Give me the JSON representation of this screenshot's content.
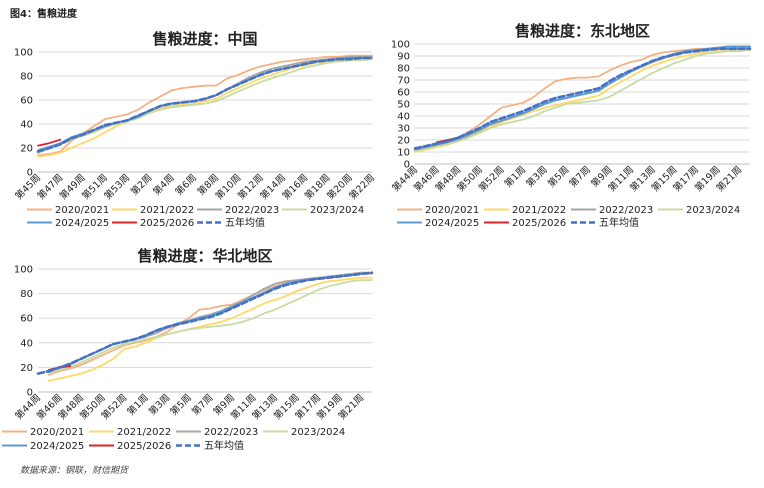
{
  "figure_caption": "图4：售粮进度",
  "source_note": "数据来源：钢联，财信期货",
  "chart_data": [
    {
      "type": "line",
      "title": "售粮进度：中国",
      "ylim": [
        0,
        100
      ],
      "yticks": [
        0,
        20,
        40,
        60,
        80,
        100
      ],
      "categories": [
        "第45周",
        "第46周",
        "第47周",
        "第48周",
        "第49周",
        "第50周",
        "第51周",
        "第52周",
        "第53周",
        "第1周",
        "第2周",
        "第3周",
        "第4周",
        "第5周",
        "第6周",
        "第7周",
        "第8周",
        "第9周",
        "第10周",
        "第11周",
        "第12周",
        "第13周",
        "第14周",
        "第15周",
        "第16周",
        "第17周",
        "第18周",
        "第19周",
        "第20周",
        "第21周",
        "第22周"
      ],
      "tick_labels": [
        "第45周",
        "第47周",
        "第49周",
        "第51周",
        "第53周",
        "第2周",
        "第4周",
        "第6周",
        "第8周",
        "第10周",
        "第12周",
        "第14周",
        "第16周",
        "第18周",
        "第20周",
        "第22周"
      ],
      "tick_indices": [
        0,
        2,
        4,
        6,
        8,
        10,
        12,
        14,
        16,
        18,
        20,
        22,
        24,
        26,
        28,
        30
      ],
      "series": [
        {
          "name": "2020/2021",
          "color": "#f4b183",
          "values": [
            14,
            15,
            17,
            26,
            32,
            38,
            44,
            46,
            48,
            52,
            58,
            63,
            68,
            70,
            71,
            72,
            72,
            78,
            81,
            85,
            88,
            90,
            92,
            93,
            94,
            95,
            96,
            96,
            97,
            97,
            97
          ]
        },
        {
          "name": "2021/2022",
          "color": "#ffd966",
          "values": [
            13,
            14,
            16,
            20,
            24,
            28,
            33,
            38,
            42,
            45,
            50,
            53,
            55,
            56,
            57,
            59,
            61,
            66,
            70,
            74,
            78,
            81,
            84,
            87,
            89,
            91,
            92,
            93,
            93,
            94,
            94
          ]
        },
        {
          "name": "2022/2023",
          "color": "#a5a5a5",
          "values": [
            17,
            20,
            24,
            28,
            31,
            34,
            38,
            41,
            43,
            47,
            51,
            55,
            57,
            58,
            59,
            61,
            64,
            69,
            74,
            79,
            83,
            86,
            88,
            90,
            92,
            93,
            94,
            95,
            96,
            96,
            96
          ]
        },
        {
          "name": "2023/2024",
          "color": "#c9dba3",
          "values": [
            16,
            19,
            23,
            27,
            30,
            33,
            37,
            40,
            42,
            45,
            49,
            52,
            54,
            55,
            56,
            57,
            59,
            63,
            67,
            71,
            75,
            78,
            81,
            84,
            87,
            89,
            91,
            92,
            93,
            93,
            94
          ]
        },
        {
          "name": "2024/2025",
          "color": "#5b9bd5",
          "values": [
            18,
            21,
            24,
            29,
            32,
            35,
            38,
            41,
            43,
            46,
            51,
            55,
            57,
            58,
            59,
            61,
            64,
            69,
            73,
            77,
            81,
            84,
            86,
            88,
            90,
            92,
            93,
            94,
            95,
            95,
            95
          ]
        },
        {
          "name": "2025/2026",
          "color": "#d62728",
          "values": [
            22,
            24,
            27,
            null,
            null,
            null,
            null,
            null,
            null,
            null,
            null,
            null,
            null,
            null,
            null,
            null,
            null,
            null,
            null,
            null,
            null,
            null,
            null,
            null,
            null,
            null,
            null,
            null,
            null,
            null,
            null
          ]
        },
        {
          "name": "五年均值",
          "color": "#4472c4",
          "dashed": true,
          "values": [
            17,
            20,
            23,
            28,
            31,
            35,
            39,
            41,
            43,
            47,
            51,
            55,
            57,
            58,
            59,
            61,
            64,
            69,
            73,
            77,
            81,
            84,
            86,
            88,
            90,
            92,
            93,
            94,
            94,
            95,
            95
          ]
        }
      ]
    },
    {
      "type": "line",
      "title": "售粮进度：东北地区",
      "ylim": [
        0,
        100
      ],
      "yticks": [
        0,
        10,
        20,
        30,
        40,
        50,
        60,
        70,
        80,
        90,
        100
      ],
      "categories": [
        "第44周",
        "第45周",
        "第46周",
        "第47周",
        "第48周",
        "第49周",
        "第50周",
        "第51周",
        "第52周",
        "第53周",
        "第1周",
        "第2周",
        "第3周",
        "第4周",
        "第5周",
        "第6周",
        "第7周",
        "第8周",
        "第9周",
        "第10周",
        "第11周",
        "第12周",
        "第13周",
        "第14周",
        "第15周",
        "第16周",
        "第17周",
        "第18周",
        "第19周",
        "第20周",
        "第21周",
        "第22周"
      ],
      "tick_labels": [
        "第44周",
        "第46周",
        "第48周",
        "第50周",
        "第52周",
        "第1周",
        "第3周",
        "第5周",
        "第7周",
        "第9周",
        "第11周",
        "第13周",
        "第15周",
        "第17周",
        "第19周",
        "第21周"
      ],
      "tick_indices": [
        0,
        2,
        4,
        6,
        8,
        10,
        12,
        14,
        16,
        18,
        20,
        22,
        24,
        26,
        28,
        30
      ],
      "series": [
        {
          "name": "2020/2021",
          "color": "#f4b183",
          "values": [
            13,
            15,
            17,
            19,
            22,
            27,
            33,
            40,
            47,
            49,
            51,
            56,
            63,
            69,
            71,
            72,
            72,
            73,
            78,
            82,
            85,
            87,
            91,
            93,
            94,
            95,
            96,
            96,
            97,
            97,
            97,
            97
          ]
        },
        {
          "name": "2021/2022",
          "color": "#ffd966",
          "values": [
            10,
            12,
            14,
            16,
            19,
            23,
            27,
            31,
            35,
            38,
            41,
            44,
            47,
            49,
            51,
            53,
            55,
            57,
            63,
            68,
            73,
            78,
            82,
            85,
            88,
            90,
            92,
            93,
            94,
            94,
            95,
            95
          ]
        },
        {
          "name": "2022/2023",
          "color": "#a5a5a5",
          "values": [
            11,
            13,
            15,
            17,
            20,
            24,
            28,
            33,
            36,
            39,
            42,
            46,
            50,
            53,
            55,
            57,
            59,
            61,
            67,
            72,
            77,
            81,
            85,
            88,
            91,
            93,
            94,
            95,
            96,
            96,
            97,
            97
          ]
        },
        {
          "name": "2023/2024",
          "color": "#c9dba3",
          "values": [
            11,
            13,
            15,
            17,
            19,
            22,
            26,
            30,
            33,
            35,
            37,
            40,
            44,
            47,
            50,
            51,
            52,
            53,
            56,
            61,
            66,
            71,
            76,
            80,
            84,
            87,
            90,
            92,
            93,
            94,
            94,
            95
          ]
        },
        {
          "name": "2024/2025",
          "color": "#5b9bd5",
          "values": [
            12,
            14,
            16,
            18,
            21,
            25,
            29,
            33,
            36,
            39,
            42,
            46,
            50,
            53,
            55,
            57,
            59,
            61,
            67,
            72,
            77,
            82,
            86,
            89,
            92,
            94,
            95,
            96,
            97,
            98,
            98,
            98
          ]
        },
        {
          "name": "2025/2026",
          "color": "#d62728",
          "values": [
            null,
            null,
            18,
            20,
            22,
            null,
            null,
            null,
            null,
            null,
            null,
            null,
            null,
            null,
            null,
            null,
            null,
            null,
            null,
            null,
            null,
            null,
            null,
            null,
            null,
            null,
            null,
            null,
            null,
            null,
            null,
            null
          ]
        },
        {
          "name": "五年均值",
          "color": "#4472c4",
          "dashed": true,
          "values": [
            13,
            15,
            17,
            19,
            22,
            26,
            30,
            35,
            38,
            41,
            44,
            48,
            52,
            55,
            57,
            59,
            61,
            63,
            69,
            74,
            78,
            82,
            86,
            89,
            91,
            93,
            94,
            95,
            96,
            96,
            96,
            96
          ]
        }
      ]
    },
    {
      "type": "line",
      "title": "售粮进度：华北地区",
      "ylim": [
        0,
        100
      ],
      "yticks": [
        0,
        20,
        40,
        60,
        80,
        100
      ],
      "categories": [
        "第44周",
        "第45周",
        "第46周",
        "第47周",
        "第48周",
        "第49周",
        "第50周",
        "第51周",
        "第52周",
        "第53周",
        "第1周",
        "第2周",
        "第3周",
        "第4周",
        "第5周",
        "第6周",
        "第7周",
        "第8周",
        "第9周",
        "第10周",
        "第11周",
        "第12周",
        "第13周",
        "第14周",
        "第15周",
        "第16周",
        "第17周",
        "第18周",
        "第19周",
        "第20周",
        "第21周",
        "第22周"
      ],
      "tick_labels": [
        "第44周",
        "第46周",
        "第48周",
        "第50周",
        "第52周",
        "第1周",
        "第3周",
        "第5周",
        "第7周",
        "第9周",
        "第11周",
        "第13周",
        "第15周",
        "第17周",
        "第19周",
        "第21周"
      ],
      "tick_indices": [
        0,
        2,
        4,
        6,
        8,
        10,
        12,
        14,
        16,
        18,
        20,
        22,
        24,
        26,
        28,
        30
      ],
      "series": [
        {
          "name": "2020/2021",
          "color": "#f4b183",
          "values": [
            null,
            14,
            17,
            19,
            22,
            26,
            30,
            34,
            38,
            40,
            42,
            45,
            49,
            55,
            60,
            67,
            68,
            70,
            71,
            75,
            79,
            83,
            86,
            89,
            90,
            91,
            92,
            93,
            94,
            95,
            96,
            96
          ]
        },
        {
          "name": "2021/2022",
          "color": "#ffd966",
          "values": [
            null,
            9,
            11,
            13,
            15,
            18,
            22,
            27,
            35,
            37,
            40,
            44,
            47,
            49,
            51,
            53,
            55,
            57,
            60,
            64,
            68,
            72,
            75,
            78,
            82,
            85,
            88,
            90,
            91,
            92,
            93,
            93
          ]
        },
        {
          "name": "2022/2023",
          "color": "#a5a5a5",
          "values": [
            null,
            17,
            19,
            22,
            27,
            31,
            35,
            39,
            41,
            43,
            45,
            48,
            52,
            55,
            58,
            61,
            63,
            66,
            70,
            74,
            79,
            84,
            88,
            90,
            91,
            92,
            93,
            94,
            95,
            96,
            97,
            97
          ]
        },
        {
          "name": "2023/2024",
          "color": "#c9dba3",
          "values": [
            null,
            16,
            18,
            20,
            24,
            28,
            32,
            36,
            39,
            41,
            43,
            45,
            47,
            49,
            51,
            52,
            53,
            54,
            55,
            57,
            60,
            64,
            67,
            71,
            75,
            79,
            83,
            86,
            88,
            90,
            91,
            91
          ]
        },
        {
          "name": "2024/2025",
          "color": "#5b9bd5",
          "values": [
            null,
            16,
            20,
            23,
            27,
            31,
            35,
            39,
            41,
            43,
            46,
            50,
            53,
            56,
            58,
            60,
            62,
            65,
            69,
            73,
            77,
            81,
            85,
            88,
            90,
            91,
            92,
            93,
            94,
            95,
            96,
            97
          ]
        },
        {
          "name": "2025/2026",
          "color": "#d62728",
          "values": [
            null,
            18,
            20,
            21,
            null,
            null,
            null,
            null,
            null,
            null,
            null,
            null,
            null,
            null,
            null,
            null,
            null,
            null,
            null,
            null,
            null,
            null,
            null,
            null,
            null,
            null,
            null,
            null,
            null,
            null,
            null,
            null
          ]
        },
        {
          "name": "五年均值",
          "color": "#4472c4",
          "dashed": true,
          "values": [
            15,
            17,
            20,
            23,
            27,
            31,
            35,
            39,
            41,
            43,
            46,
            50,
            53,
            55,
            57,
            59,
            61,
            64,
            68,
            72,
            76,
            80,
            84,
            87,
            89,
            91,
            92,
            93,
            94,
            95,
            96,
            97
          ]
        }
      ]
    }
  ]
}
